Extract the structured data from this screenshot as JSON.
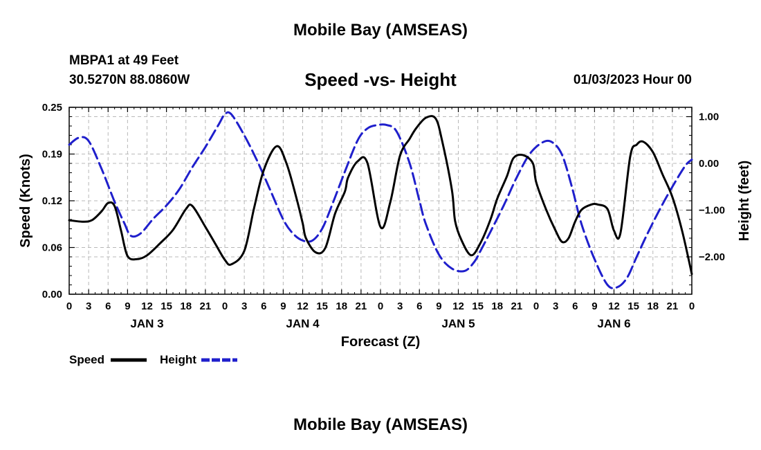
{
  "header": {
    "title": "Mobile Bay (AMSEAS)",
    "station": "MBPA1 at 49 Feet",
    "coords": "30.5270N  88.0860W",
    "subtitle": "Speed -vs- Height",
    "run_time": "01/03/2023 Hour 00"
  },
  "footer": {
    "repeat_title": "Mobile Bay (AMSEAS)"
  },
  "chart_data": {
    "type": "line",
    "xlabel": "Forecast (Z)",
    "ylabel_left": "Speed (Knots)",
    "ylabel_right": "Height (feet)",
    "xlim": [
      0,
      96
    ],
    "ylim_left": [
      0,
      0.25
    ],
    "ylim_right": [
      -2.8,
      1.2
    ],
    "x_tick_labels": [
      "0",
      "3",
      "6",
      "9",
      "12",
      "15",
      "18",
      "21",
      "0",
      "3",
      "6",
      "9",
      "12",
      "15",
      "18",
      "21",
      "0",
      "3",
      "6",
      "9",
      "12",
      "15",
      "18",
      "21",
      "0",
      "3",
      "6",
      "9",
      "12",
      "15",
      "18",
      "21",
      "0"
    ],
    "y_left_ticks": [
      {
        "value": 0.0,
        "label": "0.00"
      },
      {
        "value": 0.0625,
        "label": "0.06"
      },
      {
        "value": 0.125,
        "label": "0.12"
      },
      {
        "value": 0.1875,
        "label": "0.19"
      },
      {
        "value": 0.25,
        "label": "0.25"
      }
    ],
    "y_right_ticks": [
      {
        "value": 1.0,
        "label": "1.00"
      },
      {
        "value": 0.0,
        "label": "0.00"
      },
      {
        "value": -1.0,
        "label": "−1.00"
      },
      {
        "value": -2.0,
        "label": "−2.00"
      }
    ],
    "day_labels": [
      {
        "x": 12,
        "label": "JAN 3"
      },
      {
        "x": 36,
        "label": "JAN 4"
      },
      {
        "x": 60,
        "label": "JAN 5"
      },
      {
        "x": 84,
        "label": "JAN 6"
      }
    ],
    "grid": true,
    "legend_position": "bottom-left",
    "series": [
      {
        "name": "Speed",
        "axis": "left",
        "color": "#000000",
        "style": "solid",
        "x": [
          0,
          2,
          3.5,
          5,
          6,
          7,
          8,
          9,
          10.5,
          12,
          14,
          16,
          18,
          19,
          21,
          22.5,
          24,
          25,
          27,
          28.5,
          30,
          32,
          33.5,
          35,
          36,
          36.5,
          38,
          39.5,
          41,
          42.5,
          43,
          44.5,
          46,
          48,
          49.5,
          51,
          52.5,
          53.5,
          55,
          56.5,
          57.5,
          59,
          59.5,
          60.5,
          62,
          63.5,
          65,
          66,
          67.5,
          68.5,
          70,
          71.5,
          72,
          73.5,
          75,
          76,
          77,
          78,
          79,
          80.5,
          81.5,
          83,
          84,
          85,
          86.5,
          87.5,
          88.5,
          90,
          91.5,
          93,
          94.5,
          96
        ],
        "y": [
          0.099,
          0.097,
          0.099,
          0.111,
          0.122,
          0.118,
          0.085,
          0.051,
          0.047,
          0.052,
          0.068,
          0.086,
          0.114,
          0.118,
          0.09,
          0.068,
          0.046,
          0.04,
          0.058,
          0.115,
          0.166,
          0.198,
          0.175,
          0.13,
          0.095,
          0.075,
          0.056,
          0.062,
          0.108,
          0.137,
          0.156,
          0.178,
          0.175,
          0.09,
          0.123,
          0.185,
          0.208,
          0.222,
          0.236,
          0.235,
          0.205,
          0.14,
          0.098,
          0.072,
          0.052,
          0.07,
          0.101,
          0.128,
          0.158,
          0.182,
          0.186,
          0.175,
          0.15,
          0.114,
          0.085,
          0.07,
          0.075,
          0.097,
          0.113,
          0.12,
          0.12,
          0.114,
          0.085,
          0.082,
          0.184,
          0.2,
          0.204,
          0.19,
          0.16,
          0.13,
          0.085,
          0.027
        ]
      },
      {
        "name": "Height",
        "axis": "right",
        "color": "#1f1fcc",
        "style": "dashed",
        "x": [
          0,
          1.5,
          3,
          5,
          7,
          8.5,
          9.5,
          11,
          13,
          15,
          17,
          19,
          21,
          23,
          24,
          25,
          27,
          29,
          31,
          33,
          34.5,
          36,
          37.5,
          39,
          40.5,
          42.5,
          44.5,
          46,
          47.5,
          49,
          50.5,
          52.5,
          54,
          55,
          57,
          59,
          61,
          62.5,
          63.5,
          65,
          67,
          69,
          71,
          73,
          74.5,
          76,
          77.5,
          79,
          81,
          83,
          84.5,
          86,
          87.5,
          89,
          91,
          93,
          95,
          96
        ],
        "y": [
          0.4,
          0.55,
          0.48,
          -0.12,
          -0.82,
          -1.28,
          -1.55,
          -1.5,
          -1.18,
          -0.9,
          -0.55,
          -0.08,
          0.35,
          0.82,
          1.05,
          1.05,
          0.6,
          0.05,
          -0.57,
          -1.2,
          -1.5,
          -1.65,
          -1.65,
          -1.4,
          -0.9,
          -0.18,
          0.5,
          0.75,
          0.82,
          0.82,
          0.68,
          0.0,
          -0.8,
          -1.3,
          -1.95,
          -2.25,
          -2.3,
          -2.1,
          -1.85,
          -1.45,
          -0.9,
          -0.3,
          0.2,
          0.45,
          0.45,
          0.18,
          -0.5,
          -1.3,
          -2.05,
          -2.6,
          -2.65,
          -2.45,
          -2.0,
          -1.55,
          -1.0,
          -0.5,
          -0.05,
          0.08
        ]
      }
    ]
  }
}
